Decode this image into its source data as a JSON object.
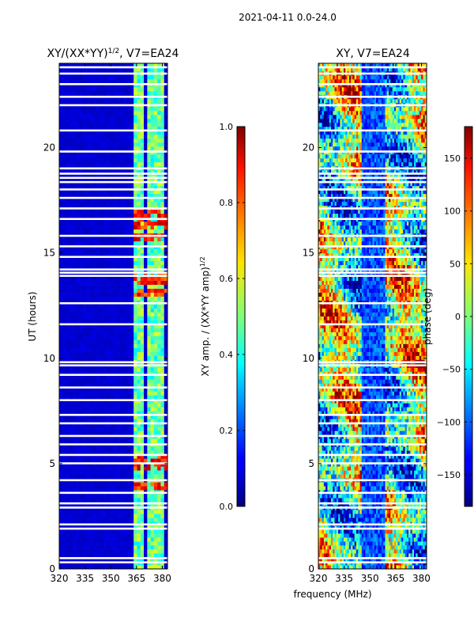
{
  "figure": {
    "suptitle": "2021-04-11 0.0-24.0",
    "shared_xlabel": "frequency (MHz)"
  },
  "chart_data": [
    {
      "type": "heatmap",
      "title_main": "XY/(XX*YY)",
      "title_exp": "1/2",
      "title_suffix": ", V7=EA24",
      "xlabel": "",
      "ylabel": "UT (hours)",
      "xlim": [
        320,
        383
      ],
      "ylim": [
        0,
        24
      ],
      "xticks": [
        320,
        335,
        350,
        365,
        380
      ],
      "yticks": [
        0,
        5,
        10,
        15,
        20
      ],
      "z_range": [
        0.0,
        1.0
      ],
      "colormap": "jet",
      "bright_channel_columns_mhz": [
        365.5,
        368,
        373,
        377,
        380
      ],
      "high_amplitude_hours": [
        3.9,
        4.8,
        5.2,
        13.0,
        13.7,
        15.6,
        16.3,
        16.8
      ],
      "flagged_hours": [
        0.3,
        0.5,
        1.9,
        2.1,
        2.9,
        3.1,
        3.6,
        4.2,
        5.0,
        5.4,
        5.9,
        6.3,
        6.9,
        7.3,
        8.0,
        8.6,
        9.2,
        9.65,
        9.8,
        11.6,
        12.6,
        13.9,
        14.05,
        14.2,
        14.8,
        15.3,
        15.8,
        16.6,
        17.1,
        17.6,
        18.0,
        18.35,
        18.55,
        18.75,
        19.0,
        19.8,
        20.8,
        22.0,
        22.4,
        23.0,
        23.5,
        23.8
      ],
      "colorbar": {
        "label_main": "XY amp. / (XX*YY amp)",
        "label_exp": "1/2",
        "range": [
          0.0,
          1.0
        ],
        "ticks": [
          0.0,
          0.2,
          0.4,
          0.6,
          0.8,
          1.0
        ]
      }
    },
    {
      "type": "heatmap",
      "title": "XY, V7=EA24",
      "xlabel": "frequency (MHz)",
      "ylabel": "",
      "xlim": [
        320,
        383
      ],
      "ylim": [
        0,
        24
      ],
      "xticks": [
        320,
        335,
        350,
        365,
        380
      ],
      "yticks": [
        0,
        5,
        10,
        15,
        20
      ],
      "z_range": [
        -180,
        180
      ],
      "colormap": "jet",
      "flagged_hours": [
        0.3,
        0.5,
        1.9,
        2.1,
        2.9,
        3.1,
        3.6,
        4.2,
        5.0,
        5.4,
        5.9,
        6.3,
        6.9,
        7.3,
        8.0,
        8.6,
        9.2,
        9.65,
        9.8,
        11.6,
        12.6,
        13.9,
        14.05,
        14.2,
        14.8,
        15.3,
        15.8,
        16.6,
        17.1,
        17.6,
        18.0,
        18.35,
        18.55,
        18.75,
        19.0,
        19.8,
        20.8,
        22.0,
        22.4,
        23.0,
        23.5,
        23.8
      ],
      "colorbar": {
        "label": "phase (deg)",
        "range": [
          -180,
          180
        ],
        "ticks": [
          -150,
          -100,
          -50,
          0,
          50,
          100,
          150
        ]
      }
    }
  ]
}
